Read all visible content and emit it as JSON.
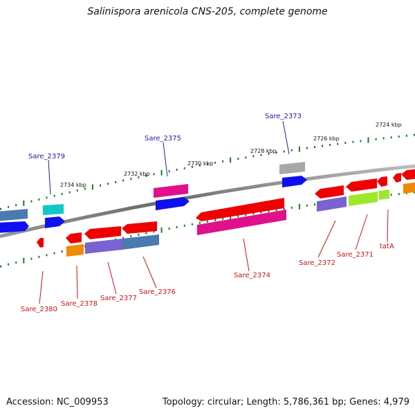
{
  "title": "Salinispora arenicola CNS-205, complete genome",
  "accession": "Accession: NC_009953",
  "summary": "Topology: circular; Length: 5,786,361 bp; Genes: 4,979",
  "ticks": [
    {
      "label": "2734 kbp"
    },
    {
      "label": "2732 kbp"
    },
    {
      "label": "2730 kbp"
    },
    {
      "label": "2728 kbp"
    },
    {
      "label": "2726 kbp"
    },
    {
      "label": "2724 kbp"
    }
  ],
  "gene_labels_top": [
    {
      "label": "Sare_2379",
      "color": "#1a1aa8"
    },
    {
      "label": "Sare_2375",
      "color": "#1a1aa8"
    },
    {
      "label": "Sare_2373",
      "color": "#1a1aa8"
    }
  ],
  "gene_labels_bottom": [
    {
      "label": "Sare_2380",
      "color": "#cc1111"
    },
    {
      "label": "Sare_2378",
      "color": "#cc1111"
    },
    {
      "label": "Sare_2377",
      "color": "#cc1111"
    },
    {
      "label": "Sare_2376",
      "color": "#cc1111"
    },
    {
      "label": "Sare_2374",
      "color": "#cc1111"
    },
    {
      "label": "Sare_2372",
      "color": "#cc1111"
    },
    {
      "label": "Sare_2371",
      "color": "#cc1111"
    },
    {
      "label": "tatA",
      "color": "#cc1111"
    }
  ],
  "colors": {
    "backbone": "#7a7a7a",
    "tick": "#1e7a1e",
    "red": "#ee0000",
    "pink": "#e0108a",
    "blue": "#1010ee",
    "steel": "#4a7bb0",
    "cyan": "#10c8c8",
    "orange": "#f08a00",
    "purple": "#7a62d0",
    "lime": "#9ee82a",
    "gray": "#a8a8a8"
  }
}
